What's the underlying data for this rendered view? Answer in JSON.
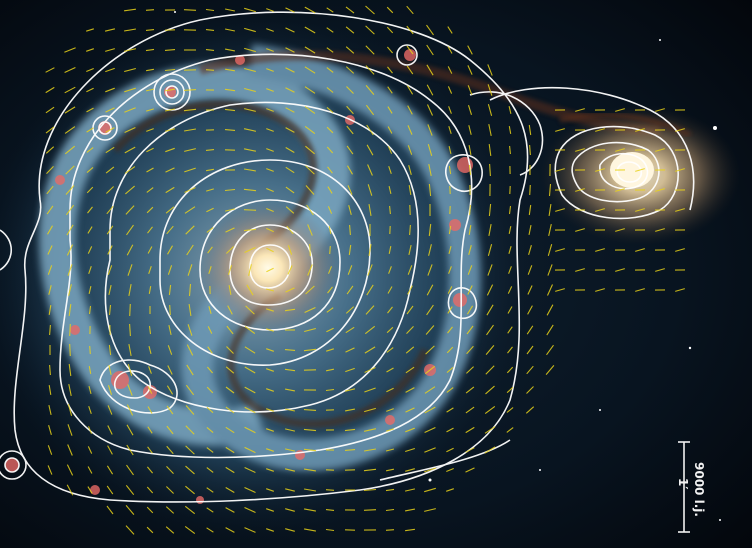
{
  "scale_bar": {
    "distance_label": "9000 l.j.",
    "angle_label": "1′"
  },
  "colors": {
    "background": "#05070d",
    "galaxy_core": "#fff3cf",
    "disk_blue": "#3f6f93",
    "star_forming": "#e0605a",
    "dust_lane": "#5b2f1a",
    "companion_glow": "#f3d9a8",
    "contours": "#ffffff",
    "polarization_vectors": "#e8d21a"
  }
}
